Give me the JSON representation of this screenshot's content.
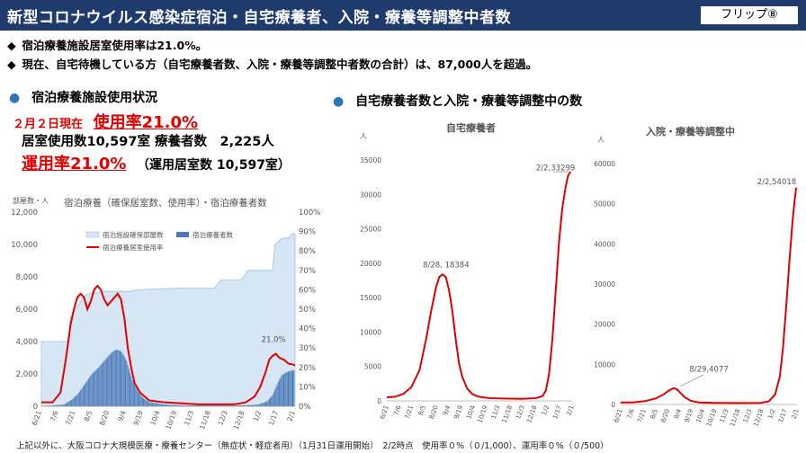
{
  "header": {
    "title": "新型コロナウイルス感染症宿泊・自宅療養者、入院・療養等調整中者数",
    "flip": "フリップ⑧"
  },
  "bullets": [
    {
      "marker": "◆",
      "text": "宿泊療養施設居室使用率は21.0%。"
    },
    {
      "marker": "◆",
      "text": "現在、自宅待機している方（自宅療養者数、入院・療養等調整中者数の合計）は、87,000人を超過。"
    }
  ],
  "left_section": {
    "dot": "●",
    "heading": "宿泊療養施設使用状況",
    "date": "２月２日現在",
    "usage_rate": "使用率21.0%",
    "rooms_line": "居室使用数10,597室 療養者数　2,225人",
    "operation_rate": "運用率21.0%",
    "operation_detail": "（運用居室数 10,597室）"
  },
  "right_section": {
    "dot": "●",
    "heading": "自宅療養者数と入院・療養等調整中の数"
  },
  "footnote": "上記以外に、大阪コロナ大規模医療・療養センター（無症状・軽症者用）（1月31日運用開始）　2/2時点　使用率０%（０/1,000）、運用率０%（０/500）",
  "colors": {
    "header_bg": "#1f3b6d",
    "accent_red": "#e00000",
    "bullet_blue": "#2e75b6",
    "area_fill": "#d6e6f4",
    "bar_blue": "#4a7ab8"
  },
  "chart_data": [
    {
      "type": "bar",
      "title": "宿泊療養（確保居室数、使用率）・宿泊療養者数",
      "ylabel_left": "部屋数・人",
      "ylim_left": [
        0,
        12000
      ],
      "yticks_left": [
        "0",
        "2,000",
        "4,000",
        "6,000",
        "8,000",
        "10,000",
        "12,000"
      ],
      "ylim_right": [
        0,
        100
      ],
      "yticks_right": [
        "0%",
        "10%",
        "20%",
        "30%",
        "40%",
        "50%",
        "60%",
        "70%",
        "80%",
        "90%",
        "100%"
      ],
      "xticks": [
        "6/21",
        "7/6",
        "7/21",
        "8/5",
        "8/20",
        "9/4",
        "9/19",
        "10/4",
        "10/19",
        "11/3",
        "11/18",
        "12/3",
        "12/18",
        "1/2",
        "1/17",
        "2/1"
      ],
      "legend": [
        "宿泊施設確保部屋数",
        "宿泊療養者数",
        "宿泊療養居室使用率"
      ],
      "annotation": "21.0%",
      "series": [
        {
          "name": "宿泊施設確保部屋数",
          "kind": "area",
          "points": [
            [
              0,
              4000
            ],
            [
              24,
              4000
            ],
            [
              26,
              5500
            ],
            [
              38,
              6800
            ],
            [
              44,
              7000
            ],
            [
              50,
              7000
            ],
            [
              56,
              7100
            ],
            [
              80,
              7100
            ],
            [
              86,
              7200
            ],
            [
              120,
              7300
            ],
            [
              154,
              7300
            ],
            [
              160,
              7800
            ],
            [
              178,
              7800
            ],
            [
              184,
              8400
            ],
            [
              206,
              8400
            ],
            [
              208,
              10000
            ],
            [
              215,
              10400
            ],
            [
              220,
              10400
            ],
            [
              224,
              10700
            ],
            [
              226,
              10600
            ]
          ]
        },
        {
          "name": "宿泊療養者数",
          "kind": "bar",
          "points": [
            [
              0,
              0
            ],
            [
              20,
              100
            ],
            [
              27,
              400
            ],
            [
              33,
              800
            ],
            [
              39,
              1400
            ],
            [
              45,
              2000
            ],
            [
              51,
              2400
            ],
            [
              56,
              2800
            ],
            [
              61,
              3200
            ],
            [
              64,
              3400
            ],
            [
              67,
              3500
            ],
            [
              71,
              3400
            ],
            [
              73,
              3200
            ],
            [
              76,
              2800
            ],
            [
              81,
              1600
            ],
            [
              86,
              900
            ],
            [
              91,
              500
            ],
            [
              96,
              250
            ],
            [
              111,
              100
            ],
            [
              126,
              50
            ],
            [
              171,
              50
            ],
            [
              186,
              70
            ],
            [
              193,
              100
            ],
            [
              201,
              300
            ],
            [
              206,
              700
            ],
            [
              211,
              1500
            ],
            [
              214,
              1900
            ],
            [
              218,
              2100
            ],
            [
              222,
              2200
            ],
            [
              225,
              2225
            ]
          ]
        },
        {
          "name": "宿泊療養居室使用率",
          "kind": "line",
          "points": [
            [
              0,
              2
            ],
            [
              10,
              2
            ],
            [
              17,
              7
            ],
            [
              22,
              25
            ],
            [
              26,
              42
            ],
            [
              29,
              50
            ],
            [
              32,
              56
            ],
            [
              35,
              58
            ],
            [
              38,
              56
            ],
            [
              41,
              50
            ],
            [
              44,
              54
            ],
            [
              47,
              60
            ],
            [
              50,
              62
            ],
            [
              53,
              60
            ],
            [
              56,
              55
            ],
            [
              59,
              52
            ],
            [
              62,
              54
            ],
            [
              65,
              56
            ],
            [
              68,
              58
            ],
            [
              71,
              55
            ],
            [
              74,
              45
            ],
            [
              77,
              30
            ],
            [
              80,
              20
            ],
            [
              83,
              12
            ],
            [
              88,
              7
            ],
            [
              96,
              3
            ],
            [
              110,
              2
            ],
            [
              140,
              1
            ],
            [
              172,
              1
            ],
            [
              182,
              2
            ],
            [
              190,
              5
            ],
            [
              195,
              10
            ],
            [
              200,
              18
            ],
            [
              203,
              24
            ],
            [
              206,
              26
            ],
            [
              209,
              27
            ],
            [
              212,
              25
            ],
            [
              216,
              24
            ],
            [
              220,
              22
            ],
            [
              224,
              21.5
            ],
            [
              226,
              21
            ]
          ]
        }
      ]
    },
    {
      "type": "line",
      "title": "自宅療養者",
      "ylabel": "人",
      "ylim": [
        0,
        35000
      ],
      "yticks": [
        "0",
        "5000",
        "10000",
        "15000",
        "20000",
        "25000",
        "30000",
        "35000"
      ],
      "xticks": [
        "6/21",
        "7/6",
        "7/21",
        "8/5",
        "8/20",
        "9/4",
        "9/19",
        "10/4",
        "10/19",
        "11/3",
        "11/18",
        "12/3",
        "12/18",
        "1/2",
        "1/17",
        "2/1"
      ],
      "annotations": [
        "8/28, 18384",
        "2/2,33299"
      ],
      "series": [
        {
          "name": "自宅療養者",
          "points": [
            [
              0,
              500
            ],
            [
              10,
              600
            ],
            [
              20,
              1000
            ],
            [
              30,
              2000
            ],
            [
              40,
              4500
            ],
            [
              48,
              9000
            ],
            [
              54,
              13000
            ],
            [
              60,
              16500
            ],
            [
              64,
              18000
            ],
            [
              68,
              18384
            ],
            [
              72,
              18000
            ],
            [
              76,
              16000
            ],
            [
              80,
              13000
            ],
            [
              84,
              9000
            ],
            [
              88,
              5500
            ],
            [
              92,
              3500
            ],
            [
              98,
              1800
            ],
            [
              104,
              1000
            ],
            [
              112,
              600
            ],
            [
              125,
              400
            ],
            [
              140,
              350
            ],
            [
              165,
              300
            ],
            [
              182,
              400
            ],
            [
              190,
              700
            ],
            [
              194,
              1500
            ],
            [
              198,
              4000
            ],
            [
              202,
              9000
            ],
            [
              206,
              16000
            ],
            [
              210,
              23000
            ],
            [
              214,
              28000
            ],
            [
              218,
              31000
            ],
            [
              221,
              32700
            ],
            [
              224,
              33299
            ]
          ]
        }
      ]
    },
    {
      "type": "line",
      "title": "入院・療養等調整中",
      "ylabel": "人",
      "ylim": [
        0,
        60000
      ],
      "yticks": [
        "0",
        "10000",
        "20000",
        "30000",
        "40000",
        "50000",
        "60000"
      ],
      "xticks": [
        "6/21",
        "7/6",
        "7/21",
        "8/5",
        "8/20",
        "9/4",
        "9/19",
        "10/4",
        "10/19",
        "11/3",
        "11/18",
        "12/3",
        "12/18",
        "1/2",
        "1/17",
        "2/1"
      ],
      "annotations": [
        "8/29,4077",
        "2/2,54018"
      ],
      "series": [
        {
          "name": "入院・療養等調整中",
          "points": [
            [
              0,
              500
            ],
            [
              15,
              500
            ],
            [
              30,
              800
            ],
            [
              45,
              1500
            ],
            [
              55,
              2500
            ],
            [
              62,
              3500
            ],
            [
              68,
              4077
            ],
            [
              72,
              3800
            ],
            [
              76,
              3000
            ],
            [
              82,
              1800
            ],
            [
              90,
              900
            ],
            [
              100,
              500
            ],
            [
              120,
              400
            ],
            [
              150,
              350
            ],
            [
              180,
              400
            ],
            [
              190,
              800
            ],
            [
              198,
              2500
            ],
            [
              204,
              7000
            ],
            [
              208,
              14000
            ],
            [
              212,
              24000
            ],
            [
              216,
              35000
            ],
            [
              220,
              45000
            ],
            [
              223,
              51000
            ],
            [
              225,
              54018
            ]
          ]
        }
      ]
    }
  ]
}
